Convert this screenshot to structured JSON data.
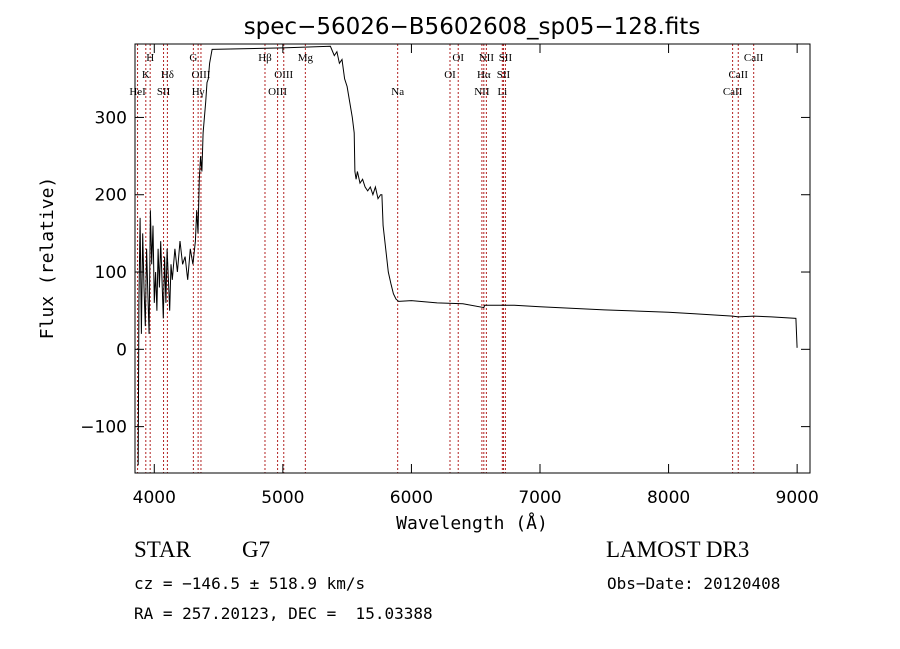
{
  "chart_data": {
    "type": "line",
    "title": "spec−56026−B5602608_sp05−128.fits",
    "xlabel": "Wavelength (Å)",
    "ylabel": "Flux (relative)",
    "xlim": [
      3850,
      9100
    ],
    "ylim": [
      -160,
      395
    ],
    "x_ticks": [
      4000,
      5000,
      6000,
      7000,
      8000,
      9000
    ],
    "y_ticks": [
      -100,
      0,
      100,
      200,
      300
    ],
    "x_tick_labels": [
      "4000",
      "5000",
      "6000",
      "7000",
      "8000",
      "9000"
    ],
    "y_tick_labels": [
      "−100",
      "0",
      "100",
      "200",
      "300"
    ],
    "grid": false,
    "legend": "none",
    "series": [
      {
        "name": "flux",
        "points": [
          [
            3875,
            -150
          ],
          [
            3880,
            60
          ],
          [
            3890,
            170
          ],
          [
            3900,
            20
          ],
          [
            3910,
            150
          ],
          [
            3920,
            80
          ],
          [
            3930,
            30
          ],
          [
            3940,
            130
          ],
          [
            3950,
            70
          ],
          [
            3960,
            20
          ],
          [
            3970,
            180
          ],
          [
            3980,
            110
          ],
          [
            3990,
            160
          ],
          [
            4000,
            60
          ],
          [
            4010,
            100
          ],
          [
            4020,
            50
          ],
          [
            4030,
            130
          ],
          [
            4040,
            80
          ],
          [
            4050,
            140
          ],
          [
            4060,
            90
          ],
          [
            4070,
            40
          ],
          [
            4080,
            120
          ],
          [
            4090,
            60
          ],
          [
            4100,
            130
          ],
          [
            4110,
            90
          ],
          [
            4120,
            50
          ],
          [
            4130,
            110
          ],
          [
            4140,
            90
          ],
          [
            4160,
            130
          ],
          [
            4180,
            100
          ],
          [
            4200,
            140
          ],
          [
            4220,
            110
          ],
          [
            4240,
            120
          ],
          [
            4260,
            90
          ],
          [
            4280,
            130
          ],
          [
            4300,
            110
          ],
          [
            4320,
            140
          ],
          [
            4330,
            180
          ],
          [
            4340,
            150
          ],
          [
            4350,
            220
          ],
          [
            4360,
            250
          ],
          [
            4370,
            230
          ],
          [
            4380,
            280
          ],
          [
            4390,
            300
          ],
          [
            4400,
            320
          ],
          [
            4410,
            345
          ],
          [
            4420,
            350
          ],
          [
            4430,
            370
          ],
          [
            4450,
            388
          ],
          [
            5000,
            390
          ],
          [
            5370,
            392
          ],
          [
            5400,
            380
          ],
          [
            5420,
            385
          ],
          [
            5440,
            370
          ],
          [
            5460,
            375
          ],
          [
            5480,
            350
          ],
          [
            5500,
            340
          ],
          [
            5520,
            320
          ],
          [
            5540,
            300
          ],
          [
            5555,
            280
          ],
          [
            5560,
            230
          ],
          [
            5570,
            220
          ],
          [
            5580,
            230
          ],
          [
            5600,
            215
          ],
          [
            5620,
            220
          ],
          [
            5640,
            210
          ],
          [
            5660,
            205
          ],
          [
            5680,
            210
          ],
          [
            5700,
            200
          ],
          [
            5720,
            210
          ],
          [
            5740,
            195
          ],
          [
            5760,
            200
          ],
          [
            5770,
            200
          ],
          [
            5780,
            160
          ],
          [
            5800,
            130
          ],
          [
            5820,
            100
          ],
          [
            5840,
            85
          ],
          [
            5860,
            72
          ],
          [
            5880,
            65
          ],
          [
            5900,
            62
          ],
          [
            6000,
            63
          ],
          [
            6200,
            60
          ],
          [
            6400,
            59
          ],
          [
            6563,
            54
          ],
          [
            6570,
            57
          ],
          [
            6800,
            57
          ],
          [
            7000,
            55
          ],
          [
            7500,
            51
          ],
          [
            8000,
            48
          ],
          [
            8200,
            46
          ],
          [
            8498,
            43
          ],
          [
            8542,
            42
          ],
          [
            8662,
            43
          ],
          [
            8800,
            42
          ],
          [
            8990,
            40
          ],
          [
            9000,
            2
          ]
        ]
      }
    ],
    "lines": [
      {
        "wavelength": 3870,
        "label": "HeI",
        "row": 3
      },
      {
        "wavelength": 3934,
        "label": "K",
        "row": 2
      },
      {
        "wavelength": 3968,
        "label": "H",
        "row": 1
      },
      {
        "wavelength": 4072,
        "label": "SII",
        "row": 3
      },
      {
        "wavelength": 4102,
        "label": "Hδ",
        "row": 2
      },
      {
        "wavelength": 4304,
        "label": "G",
        "row": 1
      },
      {
        "wavelength": 4341,
        "label": "Hγ",
        "row": 3
      },
      {
        "wavelength": 4363,
        "label": "OIII",
        "row": 2
      },
      {
        "wavelength": 4861,
        "label": "Hβ",
        "row": 1
      },
      {
        "wavelength": 4959,
        "label": "OIII",
        "row": 3
      },
      {
        "wavelength": 5007,
        "label": "OIII",
        "row": 2
      },
      {
        "wavelength": 5175,
        "label": "Mg",
        "row": 1
      },
      {
        "wavelength": 5893,
        "label": "Na",
        "row": 3
      },
      {
        "wavelength": 6300,
        "label": "OI",
        "row": 2
      },
      {
        "wavelength": 6364,
        "label": "OI",
        "row": 1
      },
      {
        "wavelength": 6548,
        "label": "NII",
        "row": 3
      },
      {
        "wavelength": 6563,
        "label": "Hα",
        "row": 2
      },
      {
        "wavelength": 6583,
        "label": "NII",
        "row": 1
      },
      {
        "wavelength": 6707,
        "label": "Li",
        "row": 3
      },
      {
        "wavelength": 6716,
        "label": "SII",
        "row": 2
      },
      {
        "wavelength": 6731,
        "label": "SII",
        "row": 1
      },
      {
        "wavelength": 8498,
        "label": "CaII",
        "row": 3
      },
      {
        "wavelength": 8542,
        "label": "CaII",
        "row": 2
      },
      {
        "wavelength": 8662,
        "label": "CaII",
        "row": 1
      }
    ]
  },
  "info": {
    "object_class": "STAR",
    "subclass": "G7",
    "survey": "LAMOST DR3",
    "redshift": "cz = −146.5 ± 518.9 km/s",
    "obs_date": "Obs−Date: 20120408",
    "coords": "RA = 257.20123, DEC =  15.03388"
  },
  "colors": {
    "spectrum": "#000000",
    "line_markers": "#b22222",
    "axis": "#000000",
    "background": "#ffffff"
  }
}
